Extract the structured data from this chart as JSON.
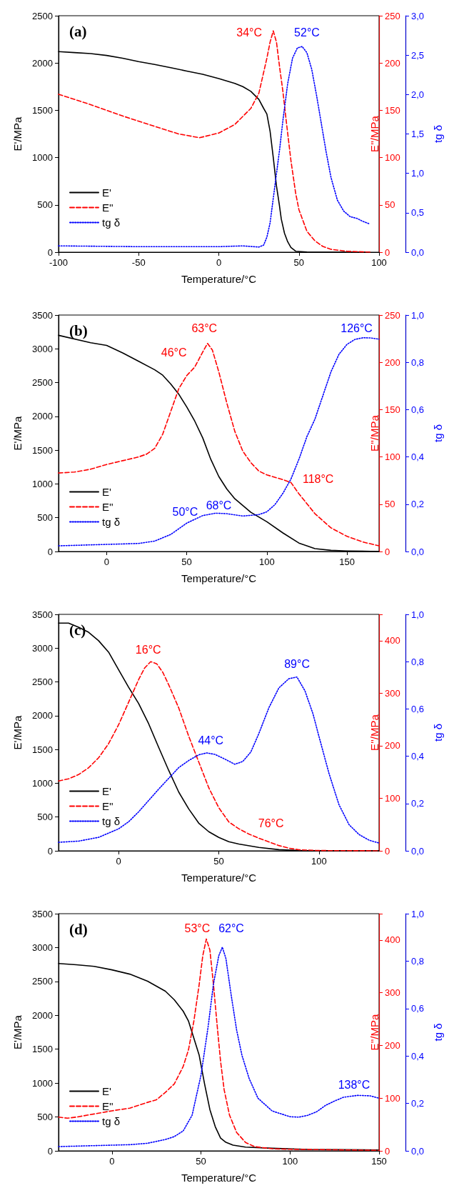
{
  "chart_data": [
    {
      "type": "line",
      "title": "(a)",
      "xlabel": "Temperature/°C",
      "ylabel": "E'/MPa",
      "y2label": "E''/MPa",
      "y3label": "tg δ",
      "legend": "bottom left",
      "marker": "none",
      "xlim": [
        -100,
        100
      ],
      "xticks": [
        -100,
        -50,
        0,
        50,
        100
      ],
      "ylim": [
        0,
        2500
      ],
      "yticks": [
        0,
        500,
        1000,
        1500,
        2000,
        2500
      ],
      "y2lim": [
        0,
        250
      ],
      "y2ticks": [
        0,
        50,
        100,
        150,
        200,
        250
      ],
      "y3lim": [
        0,
        3
      ],
      "y3ticks": [
        {
          "value": 0,
          "label": "0,0"
        },
        {
          "value": 0.5,
          "label": "0,5"
        },
        {
          "value": 1,
          "label": "1,0"
        },
        {
          "value": 1.5,
          "label": "1,5"
        },
        {
          "value": 2,
          "label": "2,0"
        },
        {
          "value": 2.5,
          "label": "2,5"
        },
        {
          "value": 3,
          "label": "3,0"
        }
      ],
      "series": [
        {
          "name": "E'",
          "color": "#000000",
          "line_style": "solid",
          "x": [
            -100,
            -90,
            -80,
            -70,
            -60,
            -50,
            -40,
            -30,
            -20,
            -10,
            0,
            10,
            15,
            20,
            25,
            28,
            30,
            32,
            34,
            36,
            37.8,
            39,
            41,
            43,
            45,
            48,
            55,
            94
          ],
          "values": [
            2120,
            2110,
            2100,
            2080,
            2050,
            2015,
            1985,
            1950,
            1915,
            1880,
            1835,
            1785,
            1750,
            1700,
            1615,
            1520,
            1460,
            1280,
            1000,
            700,
            500,
            350,
            200,
            110,
            50,
            10,
            2,
            0
          ]
        },
        {
          "name": "E''",
          "color": "#ff0000",
          "line_style": "dashed",
          "axis": "y2",
          "x": [
            -100,
            -80,
            -60,
            -40,
            -25,
            -12,
            0,
            10,
            20,
            25,
            30,
            32,
            34,
            36,
            38,
            40,
            42,
            45,
            48,
            50,
            55,
            60,
            65,
            70,
            80,
            95
          ],
          "values": [
            167,
            156,
            144,
            133,
            125,
            121,
            126,
            135,
            152,
            168,
            205,
            222,
            234,
            222,
            195,
            170,
            140,
            97,
            62,
            45,
            22,
            12,
            6,
            3,
            1,
            0
          ]
        },
        {
          "name": "tg δ",
          "color": "#0000ff",
          "line_style": "dotted",
          "axis": "y3",
          "x": [
            -100,
            -50,
            0,
            15,
            25,
            28,
            30,
            32,
            35,
            38,
            40,
            43,
            46,
            49,
            52,
            55,
            58,
            61,
            64,
            67,
            70,
            74,
            78,
            82,
            86,
            90,
            94
          ],
          "values": [
            0.08,
            0.07,
            0.07,
            0.08,
            0.065,
            0.09,
            0.19,
            0.37,
            0.84,
            1.31,
            1.67,
            2.14,
            2.46,
            2.59,
            2.61,
            2.53,
            2.32,
            1.99,
            1.63,
            1.27,
            0.95,
            0.66,
            0.52,
            0.45,
            0.43,
            0.39,
            0.36
          ]
        }
      ],
      "annotations": [
        "34°C",
        "52°C"
      ]
    },
    {
      "type": "line",
      "title": "(b)",
      "xlabel": "Temperature/°C",
      "ylabel": "E'/MPa",
      "y2label": "E''/MPa",
      "y3label": "tg δ",
      "legend": "bottom left",
      "marker": "none",
      "xlim": [
        -30,
        170
      ],
      "xticks": [
        0,
        50,
        100,
        150
      ],
      "ylim": [
        0,
        3500
      ],
      "yticks": [
        0,
        500,
        1000,
        1500,
        2000,
        2500,
        3000,
        3500
      ],
      "y2lim": [
        0,
        250
      ],
      "y2ticks": [
        0,
        50,
        100,
        150,
        200,
        250
      ],
      "y3lim": [
        0,
        1
      ],
      "y3ticks": [
        {
          "value": 0,
          "label": "0,0"
        },
        {
          "value": 0.2,
          "label": "0,2"
        },
        {
          "value": 0.4,
          "label": "0,4"
        },
        {
          "value": 0.6,
          "label": "0,6"
        },
        {
          "value": 0.8,
          "label": "0,8"
        },
        {
          "value": 1,
          "label": "1,0"
        }
      ],
      "series": [
        {
          "name": "E'",
          "color": "#000000",
          "line_style": "solid",
          "x": [
            -30,
            -10,
            0,
            10,
            20,
            30,
            35,
            40,
            45,
            50,
            55,
            60,
            65,
            70,
            75,
            80,
            90,
            100,
            110,
            120,
            130,
            140,
            150,
            170
          ],
          "values": [
            3200,
            3090,
            3050,
            2940,
            2815,
            2690,
            2610,
            2480,
            2330,
            2140,
            1930,
            1680,
            1365,
            1110,
            925,
            780,
            580,
            440,
            275,
            125,
            42,
            17,
            8,
            0
          ]
        },
        {
          "name": "E''",
          "color": "#ff0000",
          "line_style": "dashed",
          "axis": "y2",
          "x": [
            -30,
            -20,
            -10,
            0,
            10,
            20,
            25,
            30,
            35,
            40,
            45,
            50,
            55,
            60,
            63,
            66,
            70,
            75,
            80,
            85,
            90,
            95,
            100,
            110,
            115,
            120,
            130,
            140,
            150,
            160,
            170
          ],
          "values": [
            83,
            84,
            87,
            92,
            96,
            100,
            103,
            109,
            124,
            148,
            172,
            186,
            195,
            211,
            220,
            213,
            190,
            157,
            127,
            106,
            94,
            85,
            81,
            76,
            73,
            61,
            40,
            25,
            16,
            10,
            6
          ]
        },
        {
          "name": "tg δ",
          "color": "#0000ff",
          "line_style": "dotted",
          "axis": "y3",
          "x": [
            -30,
            0,
            20,
            30,
            40,
            50,
            60,
            68,
            75,
            85,
            95,
            100,
            105,
            110,
            115,
            120,
            125,
            130,
            135,
            140,
            145,
            150,
            155,
            160,
            165,
            170
          ],
          "values": [
            0.024,
            0.03,
            0.034,
            0.044,
            0.072,
            0.12,
            0.152,
            0.162,
            0.16,
            0.15,
            0.156,
            0.168,
            0.198,
            0.246,
            0.306,
            0.39,
            0.486,
            0.56,
            0.66,
            0.76,
            0.834,
            0.876,
            0.897,
            0.904,
            0.903,
            0.898
          ]
        }
      ],
      "annotations": [
        "63°C",
        "46°C",
        "118°C",
        "50°C",
        "68°C",
        "126°C"
      ]
    },
    {
      "type": "line",
      "title": "(c)",
      "xlabel": "Temperature/°C",
      "ylabel": "E'/MPa",
      "y2label": "E''/MPa",
      "y3label": "tg δ",
      "legend": "bottom left",
      "marker": "none",
      "xlim": [
        -30,
        130
      ],
      "xticks": [
        0,
        50,
        100
      ],
      "ylim": [
        0,
        3500
      ],
      "yticks": [
        0,
        500,
        1000,
        1500,
        2000,
        2500,
        3000,
        3500
      ],
      "y2lim": [
        0,
        450
      ],
      "y2ticks": [
        0,
        100,
        200,
        300,
        400
      ],
      "y3lim": [
        0,
        1
      ],
      "y3ticks": [
        {
          "value": 0,
          "label": "0,0"
        },
        {
          "value": 0.2,
          "label": "0,2"
        },
        {
          "value": 0.4,
          "label": "0,4"
        },
        {
          "value": 0.6,
          "label": "0,6"
        },
        {
          "value": 0.8,
          "label": "0,8"
        },
        {
          "value": 1,
          "label": "1,0"
        }
      ],
      "series": [
        {
          "name": "E'",
          "color": "#000000",
          "line_style": "solid",
          "x": [
            -30,
            -25,
            -20,
            -15,
            -10,
            -5,
            0,
            5,
            10,
            15,
            20,
            25,
            30,
            35,
            40,
            45,
            50,
            55,
            60,
            70,
            80,
            90,
            130
          ],
          "values": [
            3370,
            3370,
            3310,
            3235,
            3110,
            2940,
            2680,
            2420,
            2180,
            1880,
            1530,
            1190,
            870,
            620,
            409,
            283,
            198,
            135,
            101,
            51,
            17,
            4,
            0
          ]
        },
        {
          "name": "E''",
          "color": "#ff0000",
          "line_style": "dashed",
          "axis": "y2",
          "x": [
            -30,
            -25,
            -20,
            -15,
            -10,
            -5,
            0,
            5,
            10,
            13,
            16,
            19,
            22,
            25,
            30,
            35,
            40,
            45,
            50,
            55,
            60,
            65,
            70,
            75,
            80,
            85,
            90,
            100,
            130
          ],
          "values": [
            133,
            137,
            145,
            158,
            177,
            204,
            240,
            283,
            326,
            348,
            360,
            356,
            340,
            316,
            272,
            218,
            169,
            120,
            82,
            55,
            42,
            32,
            24,
            17,
            10,
            5,
            2,
            0.5,
            0
          ]
        },
        {
          "name": "tg δ",
          "color": "#0000ff",
          "line_style": "dotted",
          "axis": "y3",
          "x": [
            -30,
            -20,
            -10,
            0,
            5,
            10,
            20,
            30,
            35,
            40,
            44,
            48,
            53,
            58,
            62,
            66,
            70,
            75,
            80,
            85,
            89,
            93,
            97,
            100,
            105,
            110,
            115,
            120,
            125,
            130
          ],
          "values": [
            0.036,
            0.041,
            0.057,
            0.093,
            0.123,
            0.165,
            0.261,
            0.352,
            0.382,
            0.406,
            0.414,
            0.408,
            0.388,
            0.366,
            0.378,
            0.418,
            0.496,
            0.605,
            0.689,
            0.728,
            0.735,
            0.677,
            0.58,
            0.484,
            0.328,
            0.195,
            0.111,
            0.069,
            0.045,
            0.033
          ]
        }
      ],
      "annotations": [
        "16°C",
        "76°C",
        "44°C",
        "89°C"
      ]
    },
    {
      "type": "line",
      "title": "(d)",
      "xlabel": "Temperature/°C",
      "ylabel": "E'/MPa",
      "y2label": "E''/MPa",
      "y3label": "tg δ",
      "legend": "bottom left",
      "marker": "none",
      "xlim": [
        -30,
        150
      ],
      "xticks": [
        0,
        50,
        100,
        150
      ],
      "ylim": [
        0,
        3500
      ],
      "yticks": [
        0,
        500,
        1000,
        1500,
        2000,
        2500,
        3000,
        3500
      ],
      "y2lim": [
        0,
        450
      ],
      "y2ticks": [
        0,
        100,
        200,
        300,
        400
      ],
      "y3lim": [
        0,
        1
      ],
      "y3ticks": [
        {
          "value": 0,
          "label": "0,0"
        },
        {
          "value": 0.2,
          "label": "0,2"
        },
        {
          "value": 0.4,
          "label": "0,4"
        },
        {
          "value": 0.6,
          "label": "0,6"
        },
        {
          "value": 0.8,
          "label": "0,8"
        },
        {
          "value": 1,
          "label": "1,0"
        }
      ],
      "series": [
        {
          "name": "E'",
          "color": "#000000",
          "line_style": "solid",
          "x": [
            -30,
            -20,
            -10,
            0,
            10,
            20,
            30,
            35,
            40,
            43,
            46,
            49,
            52,
            55,
            58,
            61,
            64,
            68,
            75,
            90,
            110,
            150
          ],
          "values": [
            2764,
            2747,
            2722,
            2671,
            2608,
            2503,
            2356,
            2230,
            2061,
            1914,
            1662,
            1409,
            989,
            610,
            358,
            189,
            126,
            84,
            55,
            38,
            21,
            13
          ]
        },
        {
          "name": "E''",
          "color": "#ff0000",
          "line_style": "dashed",
          "axis": "y2",
          "x": [
            -30,
            -25,
            -20,
            -10,
            0,
            10,
            20,
            25,
            30,
            35,
            40,
            43,
            46,
            49,
            51,
            53,
            55,
            57,
            59,
            61,
            63,
            66,
            70,
            75,
            80,
            90,
            100,
            150
          ],
          "values": [
            64,
            62,
            64,
            70,
            76,
            81,
            92,
            97,
            111,
            127,
            160,
            192,
            246,
            316,
            370,
            402,
            381,
            316,
            241,
            170,
            116,
            68,
            35,
            16,
            8,
            4,
            3,
            1
          ]
        },
        {
          "name": "tg δ",
          "color": "#0000ff",
          "line_style": "dotted",
          "axis": "y3",
          "x": [
            -30,
            -10,
            0,
            10,
            20,
            30,
            35,
            40,
            45,
            50,
            54,
            57,
            60,
            62,
            64,
            67,
            70,
            73,
            77,
            82,
            90,
            100,
            105,
            110,
            115,
            120,
            125,
            130,
            138,
            145,
            150
          ],
          "values": [
            0.018,
            0.022,
            0.024,
            0.026,
            0.032,
            0.048,
            0.06,
            0.084,
            0.15,
            0.319,
            0.523,
            0.703,
            0.823,
            0.859,
            0.811,
            0.655,
            0.51,
            0.403,
            0.306,
            0.222,
            0.168,
            0.144,
            0.142,
            0.15,
            0.165,
            0.192,
            0.21,
            0.226,
            0.234,
            0.232,
            0.222
          ]
        }
      ],
      "annotations": [
        "53°C",
        "62°C",
        "138°C"
      ]
    }
  ]
}
